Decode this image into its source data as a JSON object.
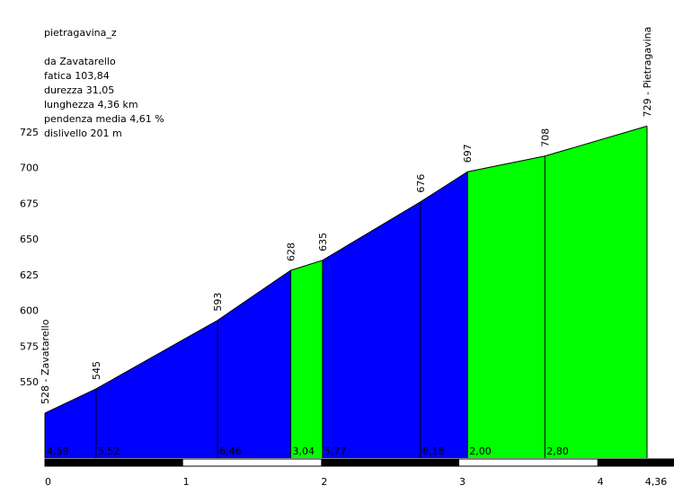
{
  "header": {
    "name": "pietragavina_z",
    "from": "da Zavatarello",
    "fatica": "fatica 103,84",
    "durezza": "durezza 31,05",
    "lunghezza": "lunghezza 4,36 km",
    "pendenza": "pendenza media 4,61 %",
    "dislivello": "dislivello 201 m"
  },
  "colors": {
    "steep": "#0000ff",
    "gentle": "#00ff00",
    "bar_dark": "#000000",
    "bar_light": "#ffffff"
  },
  "chart_data": {
    "type": "area",
    "title": "pietragavina_z",
    "xlabel": "",
    "ylabel": "",
    "xlim": [
      0,
      4.36
    ],
    "ylim": [
      500,
      745
    ],
    "y_ticks": [
      550,
      575,
      600,
      625,
      650,
      675,
      700,
      725
    ],
    "x_ticks": [
      {
        "value": 0,
        "label": "0"
      },
      {
        "value": 1,
        "label": "1"
      },
      {
        "value": 2,
        "label": "2"
      },
      {
        "value": 3,
        "label": "3"
      },
      {
        "value": 4,
        "label": "4"
      },
      {
        "value": 4.36,
        "label": "4,36"
      }
    ],
    "points": [
      {
        "x": 0.0,
        "y": 528,
        "label": "528 - Zavatarello"
      },
      {
        "x": 0.37,
        "y": 545,
        "label": "545"
      },
      {
        "x": 1.25,
        "y": 593,
        "label": "593"
      },
      {
        "x": 1.78,
        "y": 628,
        "label": "628"
      },
      {
        "x": 2.01,
        "y": 635,
        "label": "635"
      },
      {
        "x": 2.72,
        "y": 676,
        "label": "676"
      },
      {
        "x": 3.06,
        "y": 697,
        "label": "697"
      },
      {
        "x": 3.62,
        "y": 708,
        "label": "708"
      },
      {
        "x": 4.36,
        "y": 729,
        "label": "729 - Pietragavina"
      }
    ],
    "segments": [
      {
        "grade": "4,59",
        "steep": true
      },
      {
        "grade": "5,52",
        "steep": true
      },
      {
        "grade": "6,46",
        "steep": true
      },
      {
        "grade": "3,04",
        "steep": false
      },
      {
        "grade": "5,77",
        "steep": true
      },
      {
        "grade": "6,18",
        "steep": true
      },
      {
        "grade": "2,00",
        "steep": false
      },
      {
        "grade": "2,80",
        "steep": false
      }
    ],
    "grid": false,
    "legend": "none"
  }
}
